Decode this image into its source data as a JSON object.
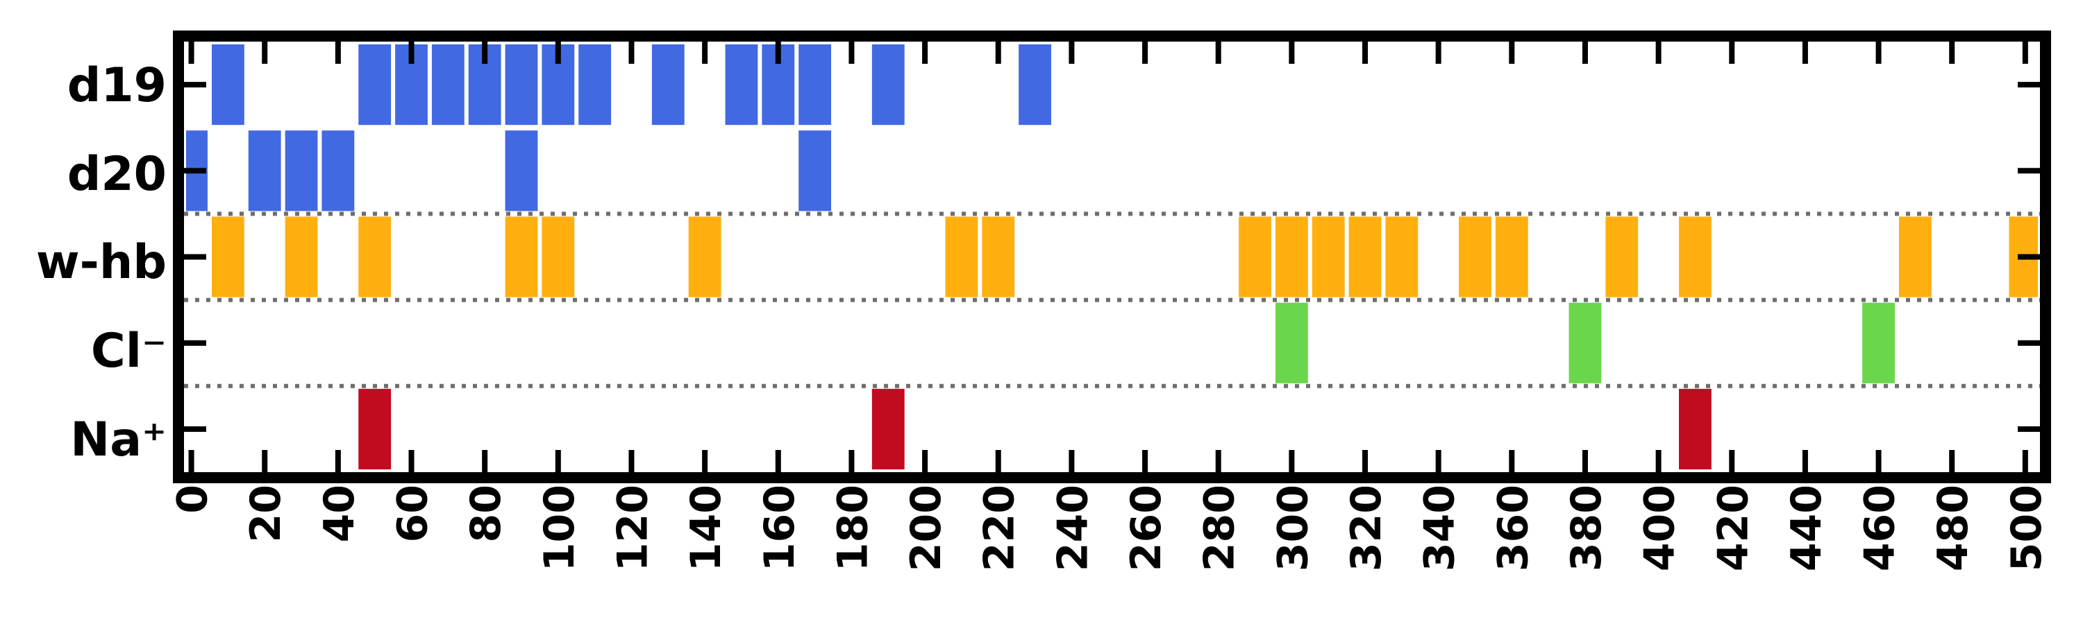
{
  "chart_data": {
    "type": "heatmap",
    "title": "",
    "xlabel": "",
    "ylabel": "",
    "xlim": [
      -2,
      504
    ],
    "x_ticks": [
      0,
      20,
      40,
      60,
      80,
      100,
      120,
      140,
      160,
      180,
      200,
      220,
      240,
      260,
      280,
      300,
      320,
      340,
      360,
      380,
      400,
      420,
      440,
      460,
      480,
      500
    ],
    "x_tick_labels": [
      "0",
      "20",
      "40",
      "60",
      "80",
      "100",
      "120",
      "140",
      "160",
      "180",
      "200",
      "220",
      "240",
      "260",
      "280",
      "300",
      "320",
      "340",
      "360",
      "380",
      "400",
      "420",
      "440",
      "460",
      "480",
      "500"
    ],
    "bin_width": 10,
    "grid": false,
    "separators": "dotted",
    "rows": [
      {
        "label": "d19",
        "color": "#4169e1",
        "events": [
          10,
          50,
          60,
          70,
          80,
          90,
          100,
          110,
          130,
          150,
          160,
          170,
          190,
          230
        ]
      },
      {
        "label": "d20",
        "color": "#4169e1",
        "events": [
          0,
          20,
          30,
          40,
          90,
          170
        ]
      },
      {
        "label": "w-hb",
        "color": "#ffb00f",
        "events": [
          10,
          30,
          50,
          90,
          100,
          140,
          210,
          220,
          290,
          300,
          310,
          320,
          330,
          350,
          360,
          390,
          410,
          470,
          500
        ]
      },
      {
        "label": "Cl⁻",
        "color": "#6ad64b",
        "events": [
          300,
          380,
          460
        ]
      },
      {
        "label": "Na⁺",
        "color": "#c10b1f",
        "events": [
          50,
          190,
          410
        ]
      }
    ]
  }
}
